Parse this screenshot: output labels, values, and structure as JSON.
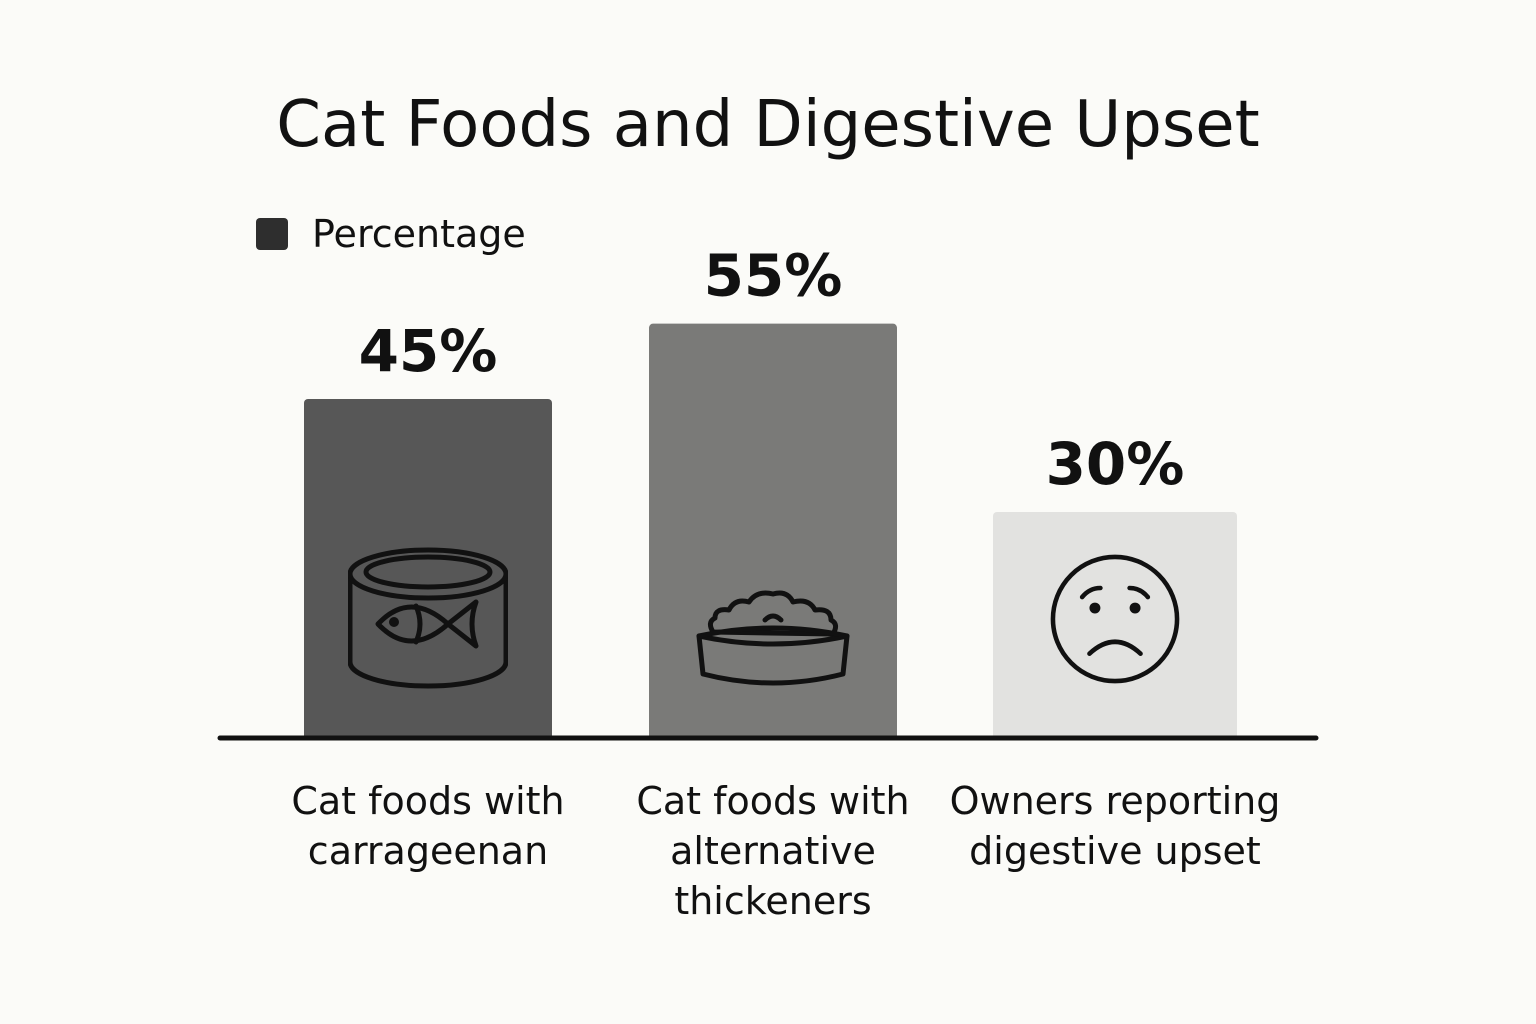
{
  "chart_data": {
    "type": "bar",
    "title": "Cat Foods and Digestive Upset",
    "xlabel": "",
    "ylabel": "",
    "ylim": [
      0,
      60
    ],
    "legend": {
      "position": "top-left",
      "color": "#2e2e2e"
    },
    "categories": [
      "Cat foods with carrageenan",
      "Cat foods with alternative thickeners",
      "Owners reporting digestive upset"
    ],
    "category_lines": [
      [
        "Cat foods with",
        "carrageenan"
      ],
      [
        "Cat foods with",
        "alternative",
        "thickeners"
      ],
      [
        "Owners reporting",
        "digestive upset"
      ]
    ],
    "series": [
      {
        "name": "Percentage",
        "values": [
          45,
          55,
          30
        ],
        "value_labels": [
          "45%",
          "55%",
          "30%"
        ],
        "colors": [
          "#575757",
          "#7a7a78",
          "#e2e2e0"
        ],
        "icons": [
          "fish-can-icon",
          "food-bowl-icon",
          "sad-face-icon"
        ]
      }
    ]
  }
}
